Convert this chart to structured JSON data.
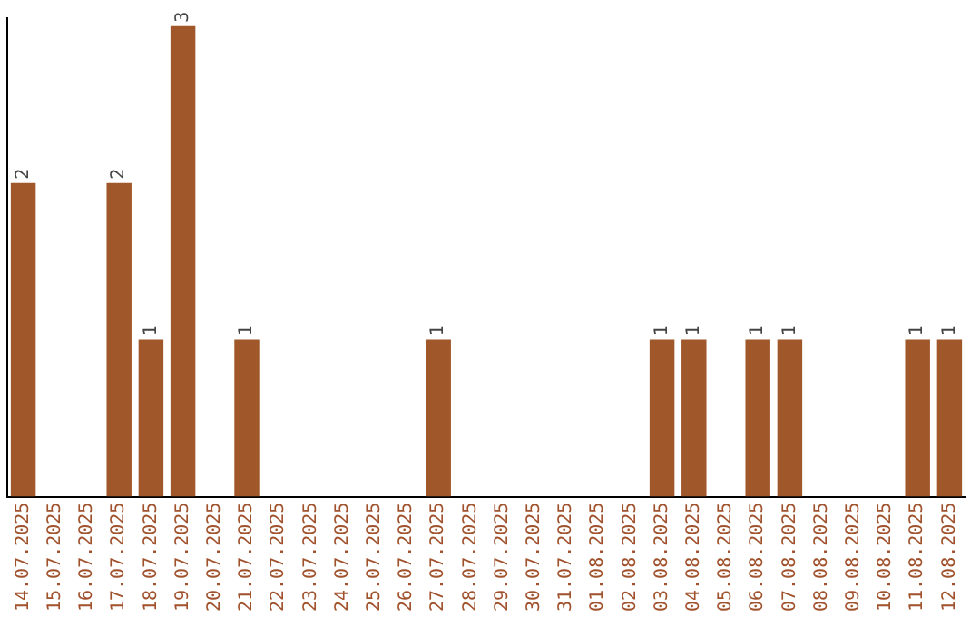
{
  "chart_data": {
    "type": "bar",
    "categories": [
      "14.07.2025",
      "15.07.2025",
      "16.07.2025",
      "17.07.2025",
      "18.07.2025",
      "19.07.2025",
      "20.07.2025",
      "21.07.2025",
      "22.07.2025",
      "23.07.2025",
      "24.07.2025",
      "25.07.2025",
      "26.07.2025",
      "27.07.2025",
      "28.07.2025",
      "29.07.2025",
      "30.07.2025",
      "31.07.2025",
      "01.08.2025",
      "02.08.2025",
      "03.08.2025",
      "04.08.2025",
      "05.08.2025",
      "06.08.2025",
      "07.08.2025",
      "08.08.2025",
      "09.08.2025",
      "10.08.2025",
      "11.08.2025",
      "12.08.2025"
    ],
    "values": [
      2,
      0,
      0,
      2,
      1,
      3,
      0,
      1,
      0,
      0,
      0,
      0,
      0,
      1,
      0,
      0,
      0,
      0,
      0,
      0,
      1,
      1,
      0,
      1,
      1,
      0,
      0,
      0,
      1,
      1
    ],
    "value_labels": [
      "2",
      null,
      null,
      "2",
      "1",
      "3",
      null,
      "1",
      null,
      null,
      null,
      null,
      null,
      "1",
      null,
      null,
      null,
      null,
      null,
      null,
      "1",
      "1",
      null,
      "1",
      "1",
      null,
      null,
      null,
      "1",
      "1"
    ],
    "color": "#a0582a",
    "ylim": [
      0,
      3.05
    ],
    "tick_labels": "x",
    "grid": false,
    "legend": false
  }
}
